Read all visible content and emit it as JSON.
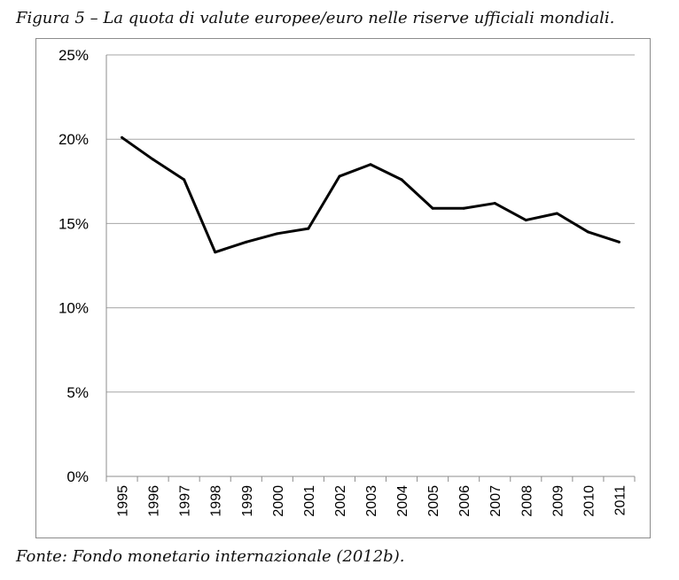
{
  "caption": "Figura 5 – La quota di valute europee/euro nelle riserve ufficiali mondiali.",
  "source": "Fonte: Fondo monetario internazionale (2012b).",
  "chart_data": {
    "type": "line",
    "title": "",
    "xlabel": "",
    "ylabel": "",
    "x": [
      "1995",
      "1996",
      "1997",
      "1998",
      "1999",
      "2000",
      "2001",
      "2002",
      "2003",
      "2004",
      "2005",
      "2006",
      "2007",
      "2008",
      "2009",
      "2010",
      "2011"
    ],
    "series": [
      {
        "values": [
          20.1,
          18.8,
          17.6,
          13.3,
          13.9,
          14.4,
          14.7,
          17.8,
          18.5,
          17.6,
          15.9,
          15.9,
          16.2,
          15.2,
          15.6,
          14.5,
          13.9
        ]
      }
    ],
    "ylim": [
      0,
      25
    ],
    "yticks": [
      "0%",
      "5%",
      "10%",
      "15%",
      "20%",
      "25%"
    ],
    "grid": true,
    "line_color": "#000000",
    "grid_color": "#a6a6a6"
  }
}
